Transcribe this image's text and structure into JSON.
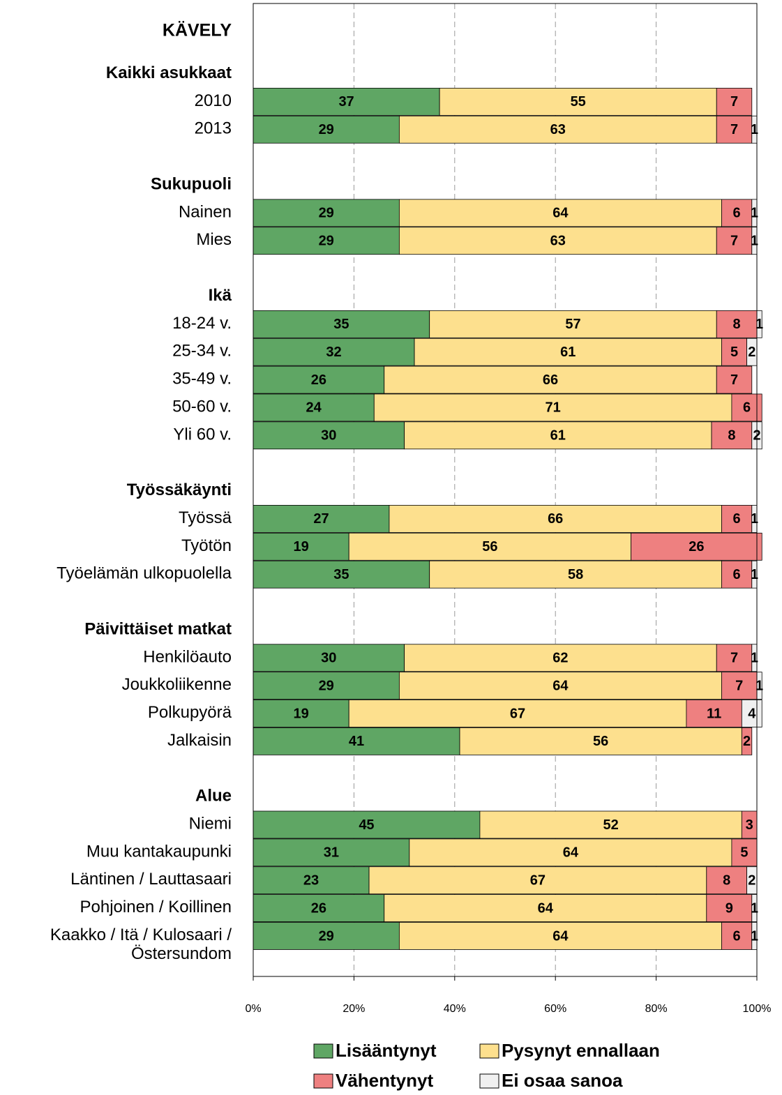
{
  "chart_data": {
    "type": "stacked_bar_horizontal",
    "title": "KÄVELY",
    "categories": [
      "Kaikki asukkaat",
      "2010",
      "2013",
      null,
      "Sukupuoli",
      "Nainen",
      "Mies",
      null,
      "Ikä",
      "18-24 v.",
      "25-34 v.",
      "35-49 v.",
      "50-60 v.",
      "Yli 60 v.",
      null,
      "Työssäkäynti",
      "Työssä",
      "Työtön",
      "Työelämän ulkopuolella",
      null,
      "Päivittäiset matkat",
      "Henkilöauto",
      "Joukkoliikenne",
      "Polkupyörä",
      "Jalkaisin",
      null,
      "Alue",
      "Niemi",
      "Muu kantakaupunki",
      "Läntinen / Lauttasaari",
      "Pohjoinen / Koillinen",
      "Kaakko / Itä / Kulosaari /\nÖstersundom"
    ],
    "series": [
      {
        "name": "Lisääntynyt",
        "color": "#5fa664",
        "values": [
          null,
          37,
          29,
          null,
          null,
          29,
          29,
          null,
          null,
          35,
          32,
          26,
          24,
          30,
          null,
          null,
          27,
          19,
          35,
          null,
          null,
          30,
          29,
          19,
          41,
          null,
          null,
          45,
          31,
          23,
          26,
          29
        ]
      },
      {
        "name": "Pysynyt ennallaan",
        "color": "#fde08e",
        "values": [
          null,
          55,
          63,
          null,
          null,
          64,
          63,
          null,
          null,
          57,
          61,
          66,
          71,
          61,
          null,
          null,
          66,
          56,
          58,
          null,
          null,
          62,
          64,
          67,
          56,
          null,
          null,
          52,
          64,
          67,
          64,
          64
        ]
      },
      {
        "name": "Vähentynyt",
        "color": "#ee8080",
        "values": [
          null,
          7,
          7,
          null,
          null,
          6,
          7,
          null,
          null,
          8,
          5,
          7,
          6,
          8,
          null,
          null,
          6,
          26,
          6,
          null,
          null,
          7,
          7,
          11,
          2,
          null,
          null,
          3,
          5,
          8,
          9,
          6
        ]
      },
      {
        "name": "Ei osaa sanoa",
        "color": "#f0f0f0",
        "values": [
          null,
          null,
          1,
          null,
          null,
          1,
          1,
          null,
          null,
          1,
          2,
          null,
          null,
          2,
          null,
          null,
          1,
          null,
          1,
          null,
          null,
          1,
          1,
          4,
          null,
          null,
          null,
          null,
          null,
          2,
          1,
          1
        ]
      }
    ],
    "xlim": [
      0,
      100
    ],
    "xticks": [
      {
        "value": 0,
        "label": "0%"
      },
      {
        "value": 20,
        "label": "20%"
      },
      {
        "value": 40,
        "label": "40%"
      },
      {
        "value": 60,
        "label": "60%"
      },
      {
        "value": 80,
        "label": "80%"
      },
      {
        "value": 100,
        "label": "100%"
      }
    ],
    "grid": true
  }
}
